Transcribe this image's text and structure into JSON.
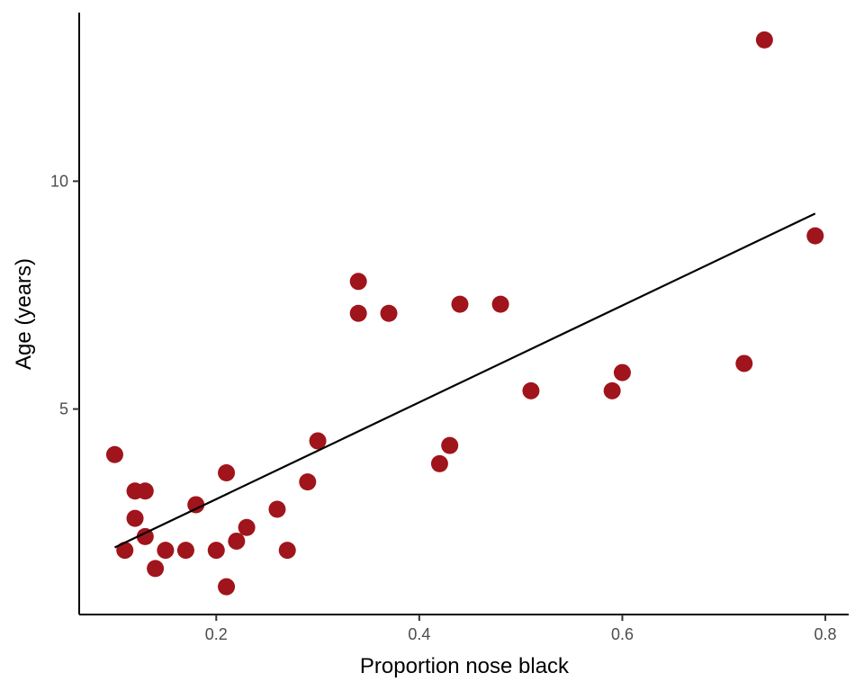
{
  "chart_data": {
    "type": "scatter",
    "title": "",
    "xlabel": "Proportion nose black",
    "ylabel": "Age (years)",
    "xlim": [
      0.065,
      0.823
    ],
    "ylim": [
      0.49,
      13.7
    ],
    "xticks": [
      0.2,
      0.4,
      0.6,
      0.8
    ],
    "xtick_labels": [
      "0.2",
      "0.4",
      "0.6",
      "0.8"
    ],
    "yticks": [
      5,
      10
    ],
    "ytick_labels": [
      "5",
      "10"
    ],
    "grid": false,
    "point_color": "#A0141B",
    "line_color": "#000000",
    "points": [
      [
        0.1,
        4.0
      ],
      [
        0.11,
        1.9
      ],
      [
        0.12,
        3.2
      ],
      [
        0.13,
        3.2
      ],
      [
        0.12,
        2.6
      ],
      [
        0.13,
        2.2
      ],
      [
        0.14,
        1.5
      ],
      [
        0.15,
        1.9
      ],
      [
        0.17,
        1.9
      ],
      [
        0.18,
        2.9
      ],
      [
        0.2,
        1.9
      ],
      [
        0.21,
        1.1
      ],
      [
        0.21,
        3.6
      ],
      [
        0.22,
        2.1
      ],
      [
        0.23,
        2.4
      ],
      [
        0.26,
        2.8
      ],
      [
        0.27,
        1.9
      ],
      [
        0.29,
        3.4
      ],
      [
        0.3,
        4.3
      ],
      [
        0.34,
        7.8
      ],
      [
        0.34,
        7.1
      ],
      [
        0.37,
        7.1
      ],
      [
        0.42,
        3.8
      ],
      [
        0.43,
        4.2
      ],
      [
        0.44,
        7.3
      ],
      [
        0.48,
        7.3
      ],
      [
        0.51,
        5.4
      ],
      [
        0.59,
        5.4
      ],
      [
        0.6,
        5.8
      ],
      [
        0.72,
        6.0
      ],
      [
        0.74,
        13.1
      ],
      [
        0.79,
        8.8
      ]
    ],
    "fit_line": {
      "x": [
        0.1,
        0.79
      ],
      "y": [
        1.96,
        9.29
      ]
    }
  }
}
